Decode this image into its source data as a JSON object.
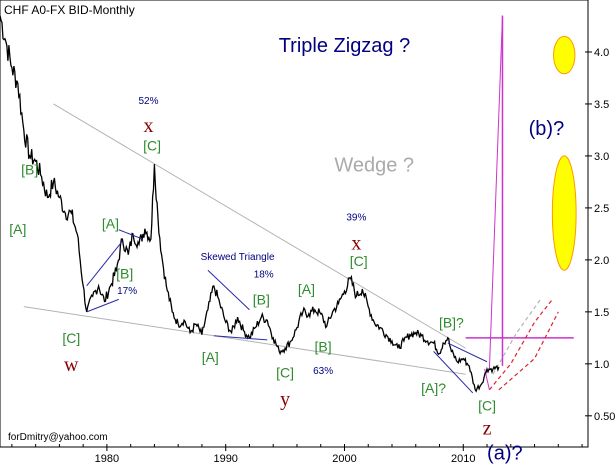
{
  "chart_data": {
    "type": "line",
    "title": "CHF A0-FX BID-Monthly",
    "xlabel": "",
    "ylabel": "",
    "x_range": [
      1971.0,
      2020.5
    ],
    "y_range": [
      0.2,
      4.5
    ],
    "y_ticks": [
      "0.50",
      "1.0",
      "1.5",
      "2.0",
      "2.5",
      "3.0",
      "3.5",
      "4.0"
    ],
    "x_ticks": [
      "1980",
      "1990",
      "2000",
      "2010"
    ],
    "grid": false,
    "series": [
      {
        "x": [
          1971.0,
          1971.5,
          1972.0,
          1972.5,
          1973.0,
          1973.5,
          1974.0,
          1974.5,
          1975.0,
          1975.5,
          1976.0,
          1976.5,
          1977.0,
          1977.5,
          1978.0,
          1978.3,
          1978.8,
          1979.3,
          1979.8,
          1980.3,
          1980.8,
          1981.3,
          1981.8,
          1982.2,
          1982.7,
          1983.2,
          1983.7,
          1984.0,
          1984.3,
          1984.6,
          1985.0,
          1985.5,
          1986.0,
          1986.5,
          1987.0,
          1987.5,
          1988.0,
          1988.5,
          1989.0,
          1989.5,
          1990.0,
          1990.5,
          1991.0,
          1991.5,
          1992.0,
          1992.5,
          1993.0,
          1993.5,
          1994.0,
          1994.5,
          1995.0,
          1995.5,
          1996.0,
          1996.5,
          1997.0,
          1997.5,
          1998.0,
          1998.5,
          1999.0,
          1999.5,
          2000.0,
          2000.5,
          2001.0,
          2001.5,
          2002.0,
          2002.5,
          2003.0,
          2003.5,
          2004.0,
          2004.5,
          2005.0,
          2005.5,
          2006.0,
          2006.5,
          2007.0,
          2007.5,
          2008.0,
          2008.3,
          2008.7,
          2009.0,
          2009.5,
          2010.0,
          2010.5,
          2011.0,
          2011.5,
          2012.0,
          2012.5,
          2013.0
        ],
        "values": [
          4.35,
          4.1,
          3.85,
          3.7,
          3.25,
          3.0,
          2.95,
          2.8,
          2.6,
          2.75,
          2.6,
          2.45,
          2.45,
          2.25,
          1.75,
          1.5,
          1.65,
          1.75,
          1.6,
          1.75,
          1.9,
          2.2,
          2.05,
          2.25,
          2.15,
          2.3,
          2.2,
          2.92,
          2.4,
          2.05,
          1.75,
          1.5,
          1.38,
          1.42,
          1.3,
          1.38,
          1.28,
          1.52,
          1.75,
          1.58,
          1.4,
          1.3,
          1.45,
          1.32,
          1.25,
          1.35,
          1.45,
          1.42,
          1.25,
          1.12,
          1.15,
          1.22,
          1.35,
          1.5,
          1.48,
          1.52,
          1.48,
          1.36,
          1.5,
          1.58,
          1.7,
          1.82,
          1.65,
          1.72,
          1.55,
          1.4,
          1.35,
          1.28,
          1.22,
          1.15,
          1.22,
          1.28,
          1.3,
          1.27,
          1.22,
          1.2,
          1.1,
          1.2,
          1.25,
          1.12,
          1.02,
          1.05,
          0.98,
          0.75,
          0.8,
          0.95,
          0.95,
          0.97
        ]
      }
    ],
    "annotations": [
      {
        "text": "[B]",
        "x": 1973.5,
        "y": 2.82,
        "style": "green"
      },
      {
        "text": "[A]",
        "x": 1972.5,
        "y": 2.25,
        "style": "green"
      },
      {
        "text": "[C]",
        "x": 1977.0,
        "y": 1.2,
        "style": "green"
      },
      {
        "text": "w",
        "x": 1977.0,
        "y": 0.93,
        "style": "red"
      },
      {
        "text": "[A]",
        "x": 1980.3,
        "y": 2.3,
        "style": "green"
      },
      {
        "text": "[B]",
        "x": 1981.5,
        "y": 1.82,
        "style": "green"
      },
      {
        "text": "17%",
        "x": 1981.7,
        "y": 1.67,
        "style": "navy-small"
      },
      {
        "text": "52%",
        "x": 1983.5,
        "y": 3.5,
        "style": "navy-small"
      },
      {
        "text": "x",
        "x": 1983.5,
        "y": 3.23,
        "style": "red"
      },
      {
        "text": "[C]",
        "x": 1983.8,
        "y": 3.05,
        "style": "green"
      },
      {
        "text": "Skewed Triangle",
        "x": 1991.0,
        "y": 2.0,
        "style": "navy-small"
      },
      {
        "text": "18%",
        "x": 1993.2,
        "y": 1.83,
        "style": "navy-small"
      },
      {
        "text": "[B]",
        "x": 1993.0,
        "y": 1.57,
        "style": "green"
      },
      {
        "text": "[A]",
        "x": 1988.7,
        "y": 1.02,
        "style": "green"
      },
      {
        "text": "[C]",
        "x": 1995.0,
        "y": 0.87,
        "style": "green"
      },
      {
        "text": "y",
        "x": 1995.0,
        "y": 0.6,
        "style": "red"
      },
      {
        "text": "63%",
        "x": 1998.2,
        "y": 0.9,
        "style": "navy-small"
      },
      {
        "text": "[A]",
        "x": 1996.8,
        "y": 1.67,
        "style": "green"
      },
      {
        "text": "[B]",
        "x": 1998.2,
        "y": 1.12,
        "style": "green"
      },
      {
        "text": "39%",
        "x": 2001.0,
        "y": 2.38,
        "style": "navy-small"
      },
      {
        "text": "x",
        "x": 2001.0,
        "y": 2.1,
        "style": "red"
      },
      {
        "text": "[C]",
        "x": 2001.2,
        "y": 1.94,
        "style": "green"
      },
      {
        "text": "Wedge ?",
        "x": 2002.5,
        "y": 2.85,
        "style": "gray"
      },
      {
        "text": "Triple Zigzag ?",
        "x": 2000.0,
        "y": 4.0,
        "style": "navy-big"
      },
      {
        "text": "[B]?",
        "x": 2009.0,
        "y": 1.35,
        "style": "green"
      },
      {
        "text": "[A]?",
        "x": 2007.5,
        "y": 0.72,
        "style": "green"
      },
      {
        "text": "[C]",
        "x": 2012.0,
        "y": 0.55,
        "style": "green"
      },
      {
        "text": "z",
        "x": 2012.0,
        "y": 0.32,
        "style": "red"
      },
      {
        "text": "(a)?",
        "x": 2013.5,
        "y": 0.08,
        "style": "navy-big"
      },
      {
        "text": "(b)?",
        "x": 2017.0,
        "y": 3.2,
        "style": "navy-big"
      }
    ],
    "lines": [
      {
        "name": "wedge-upper-line",
        "points": [
          [
            1975.5,
            3.5
          ],
          [
            2010.2,
            1.15
          ]
        ],
        "color": "#b3b3b3",
        "width": 1
      },
      {
        "name": "wedge-lower-line",
        "points": [
          [
            1973.0,
            1.55
          ],
          [
            2010.2,
            0.9
          ]
        ],
        "color": "#b3b3b3",
        "width": 1
      },
      {
        "name": "resistance-line",
        "points": [
          [
            2010.2,
            1.25
          ],
          [
            2019.3,
            1.25
          ]
        ],
        "color": "#cc33cc",
        "width": 1.5
      },
      {
        "name": "projection-vertical",
        "points": [
          [
            2013.3,
            4.35
          ],
          [
            2013.3,
            0.98
          ]
        ],
        "color": "#cc33cc",
        "width": 1.5
      },
      {
        "name": "projection-to-top",
        "points": [
          [
            2012.2,
            0.95
          ],
          [
            2013.3,
            4.35
          ]
        ],
        "color": "#cc33cc",
        "width": 1
      },
      {
        "name": "projection-left-diag",
        "points": [
          [
            2011.8,
            0.95
          ],
          [
            2012.2,
            0.75
          ]
        ],
        "color": "#cc33cc",
        "width": 1
      }
    ],
    "small_lines": [
      {
        "name": "w-lower-line",
        "points": [
          [
            1978.3,
            1.5
          ],
          [
            1981.0,
            1.62
          ]
        ],
        "color": "#2a2aaa"
      },
      {
        "name": "w-upper-line",
        "points": [
          [
            1978.3,
            1.75
          ],
          [
            1981.3,
            2.18
          ]
        ],
        "color": "#2a2aaa"
      },
      {
        "name": "x-upper-line",
        "points": [
          [
            1981.0,
            2.29
          ],
          [
            1983.0,
            2.2
          ]
        ],
        "color": "#2a2aaa"
      },
      {
        "name": "triangle-upper-line",
        "points": [
          [
            1988.5,
            1.9
          ],
          [
            1992.0,
            1.52
          ]
        ],
        "color": "#2a2aaa"
      },
      {
        "name": "triangle-lower-line",
        "points": [
          [
            1989.0,
            1.27
          ],
          [
            1993.5,
            1.23
          ]
        ],
        "color": "#2a2aaa"
      },
      {
        "name": "final-upper-line",
        "points": [
          [
            2008.7,
            1.2
          ],
          [
            2012.0,
            1.02
          ]
        ],
        "color": "#2a2aaa"
      },
      {
        "name": "final-lower-line",
        "points": [
          [
            2007.5,
            1.12
          ],
          [
            2010.8,
            0.72
          ]
        ],
        "color": "#2a2aaa"
      }
    ],
    "dashed_projections": [
      {
        "name": "red-dashed-projection-1",
        "points": [
          [
            2012.2,
            0.75
          ],
          [
            2014.0,
            1.0
          ],
          [
            2016.0,
            1.4
          ],
          [
            2017.5,
            1.62
          ]
        ],
        "color": "#e0202a"
      },
      {
        "name": "gray-dashed-projection",
        "points": [
          [
            2012.5,
            0.9
          ],
          [
            2014.5,
            1.3
          ],
          [
            2016.5,
            1.62
          ]
        ],
        "color": "#b3b3b3"
      },
      {
        "name": "red-dashed-projection-2",
        "points": [
          [
            2013.0,
            0.75
          ],
          [
            2016.0,
            1.05
          ],
          [
            2018.0,
            1.5
          ]
        ],
        "color": "#e0202a"
      }
    ],
    "ellipses": [
      {
        "name": "target-ellipse-upper",
        "cx": 2018.5,
        "cy": 3.97,
        "rx_years": 0.9,
        "ry_units": 0.18,
        "fill": "#ffff00",
        "stroke": "#ff9900"
      },
      {
        "name": "target-ellipse-lower",
        "cx": 2018.5,
        "cy": 2.45,
        "rx_years": 1.0,
        "ry_units": 0.55,
        "fill": "#ffff00",
        "stroke": "#ff9900"
      }
    ]
  },
  "footer": "forDmitry@yahoo.com",
  "colors": {
    "price": "#000000",
    "wave_green": "#2e8b2e",
    "wave_red": "#8b0000",
    "navy": "#000080",
    "magenta": "#cc33cc",
    "wedge_gray": "#b3b3b3"
  }
}
